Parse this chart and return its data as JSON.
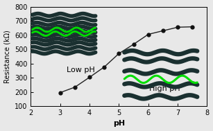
{
  "x": [
    3.0,
    3.5,
    4.0,
    4.5,
    5.0,
    5.5,
    6.0,
    6.5,
    7.0,
    7.5
  ],
  "y": [
    195,
    233,
    303,
    375,
    470,
    535,
    605,
    630,
    655,
    658
  ],
  "xlabel": "pH",
  "ylabel": "Resistance (kΩ)",
  "xlim": [
    2,
    8
  ],
  "ylim": [
    100,
    800
  ],
  "yticks": [
    100,
    200,
    300,
    400,
    500,
    600,
    700,
    800
  ],
  "xticks": [
    2,
    3,
    4,
    5,
    6,
    7,
    8
  ],
  "line_color": "#222222",
  "marker_color": "#111111",
  "bg_color": "#e8e8e8",
  "dark_layer_color": "#1a3030",
  "green_layer_color": "#00dd00",
  "low_pH_label": "Low pH",
  "high_pH_label": "High pH"
}
